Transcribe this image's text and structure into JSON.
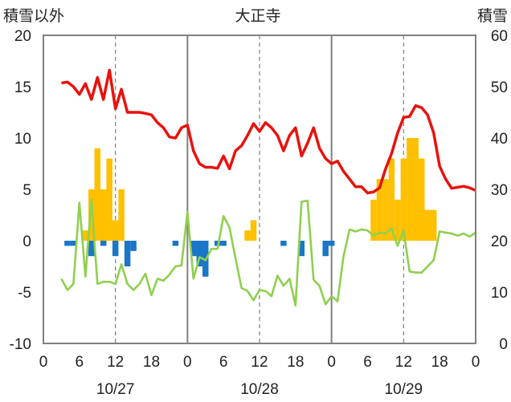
{
  "chart_data": {
    "type": "line",
    "title": "大正寺",
    "left_axis": {
      "label": "積雪以外",
      "ylim": [
        -10,
        20
      ],
      "ticks": [
        -10,
        -5,
        0,
        5,
        10,
        15,
        20
      ]
    },
    "right_axis": {
      "label": "積雪",
      "ylim": [
        0,
        60
      ],
      "ticks": [
        0,
        10,
        20,
        30,
        40,
        50,
        60
      ]
    },
    "x_axis": {
      "xlim": [
        0,
        72
      ],
      "tick_positions": [
        0,
        6,
        12,
        18,
        24,
        30,
        36,
        42,
        48,
        54,
        60,
        66,
        72
      ],
      "tick_labels": [
        "0",
        "6",
        "12",
        "18",
        "0",
        "6",
        "12",
        "18",
        "0",
        "6",
        "12",
        "18",
        "0"
      ],
      "day_labels": [
        "10/27",
        "10/28",
        "10/29"
      ]
    },
    "grid": {
      "vertical_dashed_at": [
        12,
        36,
        60
      ],
      "vertical_solid_at": [
        24,
        48
      ]
    },
    "colors": {
      "red": "#e8120c",
      "green": "#8fd04e",
      "orange": "#ffc000",
      "blue": "#1a76c8",
      "frame": "#808080"
    },
    "series": [
      {
        "axis": "right",
        "style": "line",
        "color": "red",
        "x": [
          3,
          4,
          5,
          6,
          7,
          8,
          9,
          10,
          11,
          12,
          13,
          14,
          15,
          16,
          17,
          18,
          19,
          20,
          21,
          22,
          23,
          24,
          25,
          26,
          27,
          28,
          29,
          30,
          31,
          32,
          33,
          34,
          35,
          36,
          37,
          38,
          39,
          40,
          41,
          42,
          43,
          44,
          45,
          46,
          47,
          48,
          49,
          50,
          51,
          52,
          53,
          54,
          55,
          56,
          57,
          58,
          59,
          60,
          61,
          62,
          63,
          64,
          65,
          66,
          67,
          68,
          69,
          70,
          71,
          72
        ],
        "values": [
          50.7,
          50.9,
          50,
          48.5,
          50.6,
          47.5,
          51.8,
          47.5,
          53.2,
          45.7,
          49.5,
          45,
          45,
          45,
          44.8,
          44.5,
          43,
          42,
          40.2,
          40,
          42,
          42.5,
          37.5,
          35,
          34.3,
          34.3,
          34.1,
          36.5,
          34,
          37.5,
          38.5,
          40.5,
          42.8,
          41.3,
          43,
          42,
          40.5,
          37.5,
          40.5,
          42,
          36.5,
          39,
          42,
          38,
          36,
          35,
          35.5,
          33.5,
          32,
          30.5,
          30.5,
          29.3,
          29.5,
          30.3,
          34,
          37,
          41,
          44,
          44.2,
          46.3,
          45.9,
          44.5,
          41,
          34.5,
          32,
          30.2,
          30.4,
          30.6,
          30.3,
          29.8
        ]
      },
      {
        "axis": "left",
        "style": "line",
        "color": "green",
        "x": [
          3,
          4,
          5,
          6,
          7,
          8,
          9,
          10,
          11,
          12,
          13,
          14,
          15,
          16,
          17,
          18,
          19,
          20,
          21,
          22,
          23,
          24,
          25,
          26,
          27,
          28,
          29,
          30,
          31,
          32,
          33,
          34,
          35,
          36,
          37,
          38,
          39,
          40,
          41,
          42,
          43,
          44,
          45,
          46,
          47,
          48,
          49,
          50,
          51,
          52,
          53,
          54,
          55,
          56,
          57,
          58,
          59,
          60,
          61,
          62,
          63,
          64,
          65,
          66,
          67,
          68,
          69,
          70,
          71,
          72
        ],
        "values": [
          -3.7,
          -4.8,
          -4.2,
          3.7,
          -3.5,
          4,
          -4.2,
          -4,
          -4,
          -4.2,
          -2.3,
          -4.2,
          -4.8,
          -4.2,
          -3.2,
          -5.3,
          -3.7,
          -3.9,
          -3.3,
          -2.5,
          -2.4,
          2.8,
          -3.7,
          -1.6,
          -1.9,
          -0.8,
          -0.8,
          2.4,
          1.3,
          -1.7,
          -4.6,
          -4.9,
          -5.8,
          -4.8,
          -4.9,
          -5.4,
          -3.4,
          -4.4,
          -3.7,
          -6.3,
          3.8,
          3.9,
          -3.8,
          -4.4,
          -6.2,
          -5.4,
          -5.9,
          -1.5,
          1.1,
          0.9,
          1.1,
          1,
          0.5,
          0.8,
          0.7,
          1.2,
          -0.5,
          1,
          -3,
          -3.1,
          -3.1,
          -2.5,
          -1.9,
          0.9,
          0.8,
          0.7,
          0.5,
          0.7,
          0.4,
          0.8
        ]
      },
      {
        "axis": "left",
        "style": "bar",
        "color": "orange",
        "x": [
          7,
          8,
          9,
          10,
          11,
          12,
          13,
          34,
          35,
          55,
          56,
          57,
          58,
          59,
          60,
          61,
          62,
          63,
          64,
          65
        ],
        "values": [
          1,
          5,
          9,
          5,
          8,
          2,
          5,
          1,
          2,
          4,
          6,
          6,
          8,
          4,
          8,
          10,
          10,
          8,
          3,
          3
        ]
      },
      {
        "axis": "left",
        "style": "bar",
        "color": "blue",
        "x": [
          4,
          5,
          8,
          10,
          12,
          14,
          15,
          22,
          25,
          26,
          27,
          29,
          30,
          40,
          43,
          47,
          48
        ],
        "values": [
          -0.5,
          -0.5,
          -1.5,
          -0.5,
          -1.5,
          -2.5,
          -1,
          -0.5,
          -1.5,
          -2.5,
          -3.5,
          -0.5,
          -0.5,
          -0.5,
          -1.5,
          -1.5,
          -0.5
        ]
      }
    ]
  }
}
